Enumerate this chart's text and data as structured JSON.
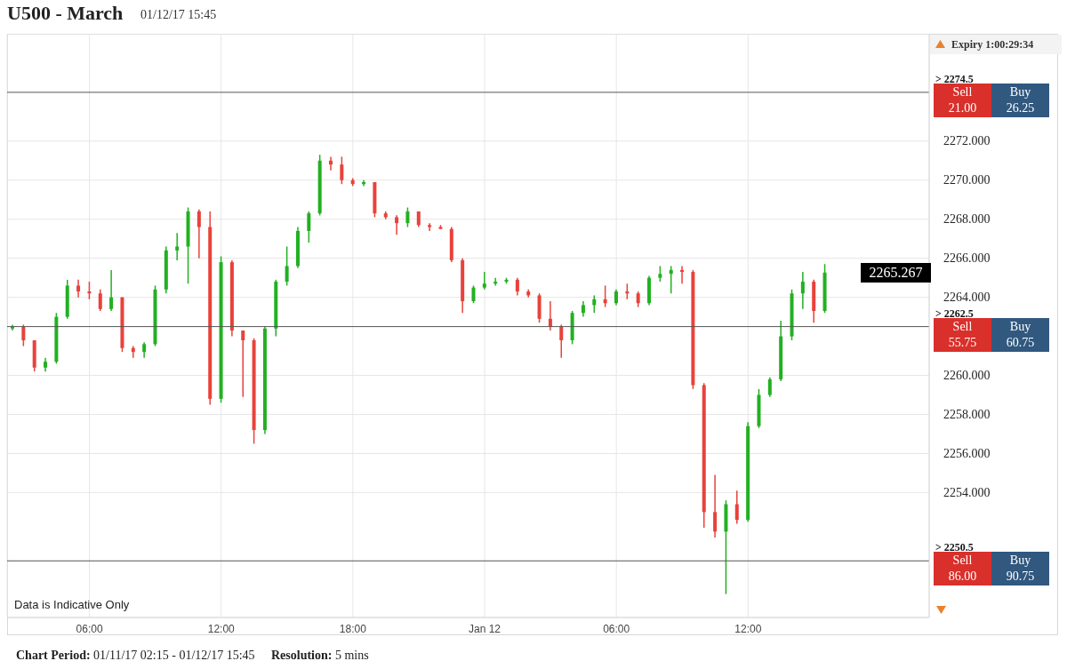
{
  "chart_data": {
    "type": "candlestick",
    "title": "U500 - March",
    "subtitle": "01/12/17 15:45",
    "x": [
      "--01-11T02:30",
      "--01-11T03:00",
      "--01-11T03:30",
      "--01-11T04:00",
      "--01-11T04:30",
      "--01-11T05:00",
      "--01-11T05:30",
      "--01-11T06:00",
      "--01-11T06:30",
      "--01-11T07:00",
      "--01-11T07:30",
      "--01-11T08:00",
      "--01-11T08:30",
      "--01-11T09:00",
      "--01-11T09:30",
      "--01-11T10:00",
      "--01-11T10:30",
      "--01-11T11:00",
      "--01-11T11:30",
      "--01-11T12:00",
      "--01-11T12:30",
      "--01-11T13:00",
      "--01-11T13:30",
      "--01-11T14:00",
      "--01-11T14:30",
      "--01-11T15:00",
      "--01-11T15:30",
      "--01-11T16:00",
      "--01-11T16:30",
      "--01-11T17:00",
      "--01-11T17:30",
      "--01-11T18:00",
      "--01-11T18:30",
      "--01-11T19:00",
      "--01-11T19:30",
      "--01-11T20:00",
      "--01-11T20:30",
      "--01-11T21:00",
      "--01-11T21:30",
      "--01-11T22:00",
      "--01-11T22:30",
      "--01-11T23:00",
      "--01-11T23:30",
      "--01-12T00:00",
      "--01-12T00:30",
      "--01-12T01:00",
      "--01-12T01:30",
      "--01-12T02:00",
      "--01-12T02:30",
      "--01-12T03:00",
      "--01-12T03:30",
      "--01-12T04:00",
      "--01-12T04:30",
      "--01-12T05:00",
      "--01-12T05:30",
      "--01-12T06:00",
      "--01-12T06:30",
      "--01-12T07:00",
      "--01-12T07:30",
      "--01-12T08:00",
      "--01-12T08:30",
      "--01-12T09:00",
      "--01-12T09:30",
      "--01-12T10:00",
      "--01-12T10:30",
      "--01-12T11:00",
      "--01-12T11:30",
      "--01-12T12:00",
      "--01-12T12:30",
      "--01-12T13:00",
      "--01-12T13:30",
      "--01-12T14:00",
      "--01-12T14:30",
      "--01-12T15:00",
      "--01-12T15:30"
    ],
    "ohlc": [
      [
        2262.4,
        2262.6,
        2262.3,
        2262.5
      ],
      [
        2262.5,
        2262.6,
        2261.5,
        2261.8
      ],
      [
        2261.8,
        2261.8,
        2260.2,
        2260.4
      ],
      [
        2260.4,
        2260.9,
        2260.2,
        2260.7
      ],
      [
        2260.7,
        2263.2,
        2260.6,
        2263.0
      ],
      [
        2263.0,
        2264.9,
        2262.9,
        2264.6
      ],
      [
        2264.6,
        2264.9,
        2264.0,
        2264.3
      ],
      [
        2264.3,
        2264.8,
        2263.9,
        2264.2
      ],
      [
        2264.2,
        2264.4,
        2263.3,
        2263.4
      ],
      [
        2263.4,
        2265.4,
        2263.3,
        2264.0
      ],
      [
        2264.0,
        2264.0,
        2261.2,
        2261.4
      ],
      [
        2261.4,
        2261.5,
        2260.9,
        2261.2
      ],
      [
        2261.2,
        2261.7,
        2260.9,
        2261.6
      ],
      [
        2261.6,
        2264.6,
        2261.5,
        2264.4
      ],
      [
        2264.4,
        2266.6,
        2264.2,
        2266.4
      ],
      [
        2266.4,
        2267.3,
        2265.9,
        2266.6
      ],
      [
        2266.6,
        2268.6,
        2264.7,
        2268.4
      ],
      [
        2268.4,
        2268.5,
        2266.0,
        2267.6
      ],
      [
        2267.6,
        2268.4,
        2258.5,
        2258.8
      ],
      [
        2258.8,
        2266.1,
        2258.6,
        2265.8
      ],
      [
        2265.8,
        2265.9,
        2262.0,
        2262.3
      ],
      [
        2262.3,
        2262.3,
        2258.9,
        2261.8
      ],
      [
        2261.8,
        2261.9,
        2256.5,
        2257.2
      ],
      [
        2257.2,
        2262.5,
        2257.0,
        2262.4
      ],
      [
        2262.4,
        2264.9,
        2262.0,
        2264.8
      ],
      [
        2264.8,
        2266.6,
        2264.6,
        2265.6
      ],
      [
        2265.6,
        2267.6,
        2265.5,
        2267.4
      ],
      [
        2267.4,
        2268.4,
        2266.8,
        2268.3
      ],
      [
        2268.3,
        2271.3,
        2268.2,
        2271.0
      ],
      [
        2271.0,
        2271.2,
        2270.5,
        2270.8
      ],
      [
        2270.8,
        2271.2,
        2269.8,
        2270.0
      ],
      [
        2270.0,
        2270.1,
        2269.7,
        2269.8
      ],
      [
        2269.8,
        2270.0,
        2269.7,
        2269.9
      ],
      [
        2269.9,
        2269.9,
        2268.1,
        2268.3
      ],
      [
        2268.3,
        2268.4,
        2268.0,
        2268.1
      ],
      [
        2268.1,
        2268.2,
        2267.2,
        2267.8
      ],
      [
        2267.8,
        2268.6,
        2267.6,
        2268.4
      ],
      [
        2268.4,
        2268.4,
        2267.6,
        2267.7
      ],
      [
        2267.7,
        2267.8,
        2267.4,
        2267.6
      ],
      [
        2267.6,
        2267.7,
        2267.5,
        2267.5
      ],
      [
        2267.5,
        2267.6,
        2265.8,
        2265.9
      ],
      [
        2265.9,
        2266.0,
        2263.2,
        2263.8
      ],
      [
        2263.8,
        2264.6,
        2263.7,
        2264.5
      ],
      [
        2264.5,
        2265.3,
        2264.4,
        2264.7
      ],
      [
        2264.7,
        2265.0,
        2264.6,
        2264.8
      ],
      [
        2264.8,
        2265.0,
        2264.7,
        2264.9
      ],
      [
        2264.9,
        2265.0,
        2264.1,
        2264.3
      ],
      [
        2264.3,
        2264.4,
        2264.0,
        2264.1
      ],
      [
        2264.1,
        2264.2,
        2262.7,
        2262.9
      ],
      [
        2262.9,
        2263.8,
        2262.3,
        2262.5
      ],
      [
        2262.5,
        2262.6,
        2260.9,
        2261.8
      ],
      [
        2261.8,
        2263.3,
        2261.6,
        2263.2
      ],
      [
        2263.2,
        2263.8,
        2263.0,
        2263.6
      ],
      [
        2263.6,
        2264.1,
        2263.2,
        2263.9
      ],
      [
        2263.9,
        2264.6,
        2263.5,
        2263.7
      ],
      [
        2263.7,
        2264.4,
        2263.6,
        2264.3
      ],
      [
        2264.3,
        2264.7,
        2263.9,
        2264.2
      ],
      [
        2264.2,
        2264.3,
        2263.5,
        2263.7
      ],
      [
        2263.7,
        2265.1,
        2263.6,
        2265.0
      ],
      [
        2265.0,
        2265.6,
        2264.8,
        2265.2
      ],
      [
        2265.2,
        2265.6,
        2264.2,
        2265.4
      ],
      [
        2265.4,
        2265.6,
        2264.7,
        2265.3
      ],
      [
        2265.3,
        2265.4,
        2259.3,
        2259.5
      ],
      [
        2259.5,
        2259.6,
        2252.2,
        2253.0
      ],
      [
        2253.0,
        2254.9,
        2251.7,
        2252.0
      ],
      [
        2252.0,
        2253.6,
        2248.8,
        2253.4
      ],
      [
        2253.4,
        2254.1,
        2252.4,
        2252.6
      ],
      [
        2252.6,
        2257.6,
        2252.5,
        2257.4
      ],
      [
        2257.4,
        2259.3,
        2257.3,
        2259.0
      ],
      [
        2259.0,
        2259.9,
        2258.9,
        2259.8
      ],
      [
        2259.8,
        2262.8,
        2259.7,
        2262.0
      ],
      [
        2262.0,
        2264.4,
        2261.8,
        2264.2
      ],
      [
        2264.2,
        2265.3,
        2263.4,
        2264.8
      ],
      [
        2264.8,
        2264.9,
        2262.7,
        2263.3
      ],
      [
        2263.3,
        2265.7,
        2263.2,
        2265.267
      ]
    ],
    "colors": [
      "#22b022",
      "#e8423b",
      "#e8423b",
      "#22b022",
      "#22b022",
      "#22b022",
      "#e8423b",
      "#e8423b",
      "#e8423b",
      "#22b022",
      "#e8423b",
      "#e8423b",
      "#22b022",
      "#22b022",
      "#22b022",
      "#22b022",
      "#22b022",
      "#e8423b",
      "#e8423b",
      "#22b022",
      "#e8423b",
      "#e8423b",
      "#e8423b",
      "#22b022",
      "#22b022",
      "#22b022",
      "#22b022",
      "#22b022",
      "#22b022",
      "#e8423b",
      "#e8423b",
      "#e8423b",
      "#22b022",
      "#e8423b",
      "#e8423b",
      "#e8423b",
      "#22b022",
      "#e8423b",
      "#e8423b",
      "#e8423b",
      "#e8423b",
      "#e8423b",
      "#22b022",
      "#22b022",
      "#22b022",
      "#22b022",
      "#e8423b",
      "#e8423b",
      "#e8423b",
      "#e8423b",
      "#e8423b",
      "#22b022",
      "#22b022",
      "#22b022",
      "#e8423b",
      "#22b022",
      "#e8423b",
      "#e8423b",
      "#22b022",
      "#22b022",
      "#22b022",
      "#e8423b",
      "#e8423b",
      "#e8423b",
      "#e8423b",
      "#22b022",
      "#e8423b",
      "#22b022",
      "#22b022",
      "#22b022",
      "#22b022",
      "#22b022",
      "#22b022",
      "#e8423b",
      "#22b022"
    ],
    "xlim": [
      "--01-11T02:15",
      "--01-12T20:15"
    ],
    "xticks": [
      {
        "value": "--01-11T06:00",
        "label": "06:00"
      },
      {
        "value": "--01-11T12:00",
        "label": "12:00"
      },
      {
        "value": "--01-11T18:00",
        "label": "18:00"
      },
      {
        "value": "--01-12T00:00",
        "label": "Jan 12"
      },
      {
        "value": "--01-12T06:00",
        "label": "06:00"
      },
      {
        "value": "--01-12T12:00",
        "label": "12:00"
      }
    ],
    "ylim": [
      2247.6,
      2277.5
    ],
    "yticks": [
      {
        "value": 2254,
        "label": "2254.000"
      },
      {
        "value": 2256,
        "label": "2256.000"
      },
      {
        "value": 2258,
        "label": "2258.000"
      },
      {
        "value": 2260,
        "label": "2260.000"
      },
      {
        "value": 2264,
        "label": "2264.000"
      },
      {
        "value": 2266,
        "label": "2266.000"
      },
      {
        "value": 2268,
        "label": "2268.000"
      },
      {
        "value": 2270,
        "label": "2270.000"
      },
      {
        "value": 2272,
        "label": "2272.000"
      }
    ],
    "grid": true,
    "ref_lines": [
      {
        "axis": "y",
        "value": 2274.5,
        "label": "> 2274.5",
        "color": "#555555"
      },
      {
        "axis": "y",
        "value": 2262.5,
        "label": "> 2262.5",
        "color": "#555555"
      },
      {
        "axis": "y",
        "value": 2250.5,
        "label": "> 2250.5",
        "color": "#555555"
      }
    ],
    "annotations": [
      "Sell 21.00",
      "Buy 26.25",
      "Sell 55.75",
      "Buy 60.75",
      "Sell 86.00",
      "Buy 90.75",
      "2265.267",
      "Expiry 1:00:29:34",
      "Data is Indicative Only",
      "Chart Period: 01/11/17 02:15 - 01/12/17 15:45",
      "Resolution: 5 mins"
    ]
  }
}
